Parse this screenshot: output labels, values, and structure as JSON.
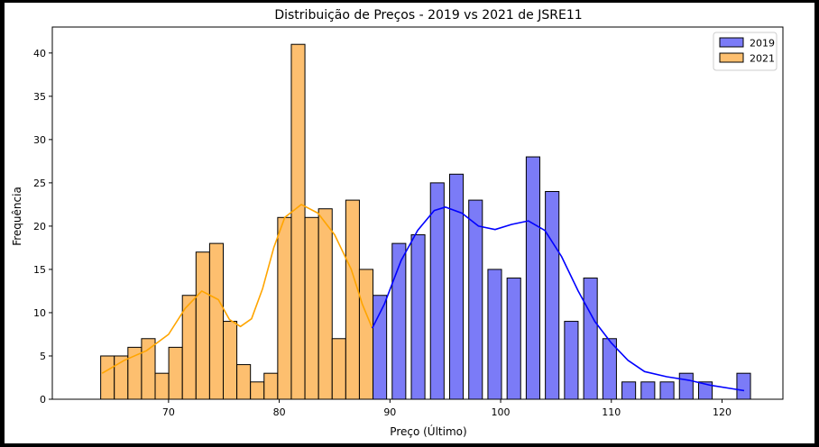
{
  "chart_data": {
    "type": "bar",
    "title": "Distribuição de Preços - 2019 vs 2021 de JSRE11",
    "xlabel": "Preço (Último)",
    "ylabel": "Frequência",
    "xlim": [
      59.5,
      125.5
    ],
    "ylim": [
      0,
      43
    ],
    "xticks": [
      70,
      80,
      90,
      100,
      110,
      120
    ],
    "yticks": [
      0,
      5,
      10,
      15,
      20,
      25,
      30,
      35,
      40
    ],
    "grid": false,
    "legend_position": "top-right",
    "bin_width": 1.23,
    "series": [
      {
        "name": "2021",
        "color": "#fdbf6f",
        "kde_color": "#ffa500",
        "bin_starts": [
          63.87,
          65.1,
          66.33,
          67.56,
          68.79,
          70.02,
          71.25,
          72.48,
          73.71,
          74.94,
          76.17,
          77.4,
          78.63,
          79.86,
          81.09,
          82.32,
          83.55,
          84.78,
          86.01,
          87.24
        ],
        "counts": [
          5,
          5,
          6,
          7,
          3,
          6,
          12,
          17,
          18,
          9,
          4,
          2,
          3,
          21,
          41,
          21,
          22,
          7,
          23,
          15
        ],
        "kde": [
          [
            64,
            3
          ],
          [
            66,
            4.5
          ],
          [
            68,
            5.6
          ],
          [
            70,
            7.5
          ],
          [
            71.5,
            10.5
          ],
          [
            73,
            12.5
          ],
          [
            74.5,
            11.5
          ],
          [
            75.5,
            9.2
          ],
          [
            76.5,
            8.4
          ],
          [
            77.5,
            9.3
          ],
          [
            78.5,
            12.8
          ],
          [
            79.5,
            17.5
          ],
          [
            80.5,
            21
          ],
          [
            82,
            22.5
          ],
          [
            83.5,
            21.5
          ],
          [
            85,
            19
          ],
          [
            86.5,
            15
          ],
          [
            87.5,
            11
          ],
          [
            88.4,
            8.2
          ]
        ]
      },
      {
        "name": "2019",
        "color": "#7b7bf7",
        "kde_color": "#0000ff",
        "bin_starts": [
          88.47,
          90.2,
          91.93,
          93.66,
          95.39,
          97.12,
          98.85,
          100.58,
          102.31,
          104.04,
          105.77,
          107.5,
          109.23,
          110.96,
          112.69,
          114.42,
          116.15,
          117.88,
          119.61,
          121.34
        ],
        "counts": [
          12,
          18,
          19,
          25,
          26,
          23,
          15,
          14,
          28,
          24,
          9,
          14,
          7,
          2,
          2,
          2,
          3,
          2,
          0,
          3
        ],
        "kde": [
          [
            88.4,
            8.2
          ],
          [
            89.5,
            11
          ],
          [
            91,
            16
          ],
          [
            92.5,
            19.5
          ],
          [
            94,
            21.8
          ],
          [
            95,
            22.2
          ],
          [
            96.5,
            21.5
          ],
          [
            98,
            20
          ],
          [
            99.5,
            19.6
          ],
          [
            101,
            20.2
          ],
          [
            102.5,
            20.6
          ],
          [
            104,
            19.5
          ],
          [
            105.5,
            16.5
          ],
          [
            107,
            12.5
          ],
          [
            108.5,
            9
          ],
          [
            110,
            6.5
          ],
          [
            111.5,
            4.5
          ],
          [
            113,
            3.2
          ],
          [
            115,
            2.6
          ],
          [
            117,
            2.2
          ],
          [
            119,
            1.6
          ],
          [
            121,
            1.2
          ],
          [
            122,
            1
          ]
        ]
      }
    ],
    "legend": [
      {
        "label": "2019",
        "color": "#7b7bf7"
      },
      {
        "label": "2021",
        "color": "#fdbf6f"
      }
    ]
  }
}
